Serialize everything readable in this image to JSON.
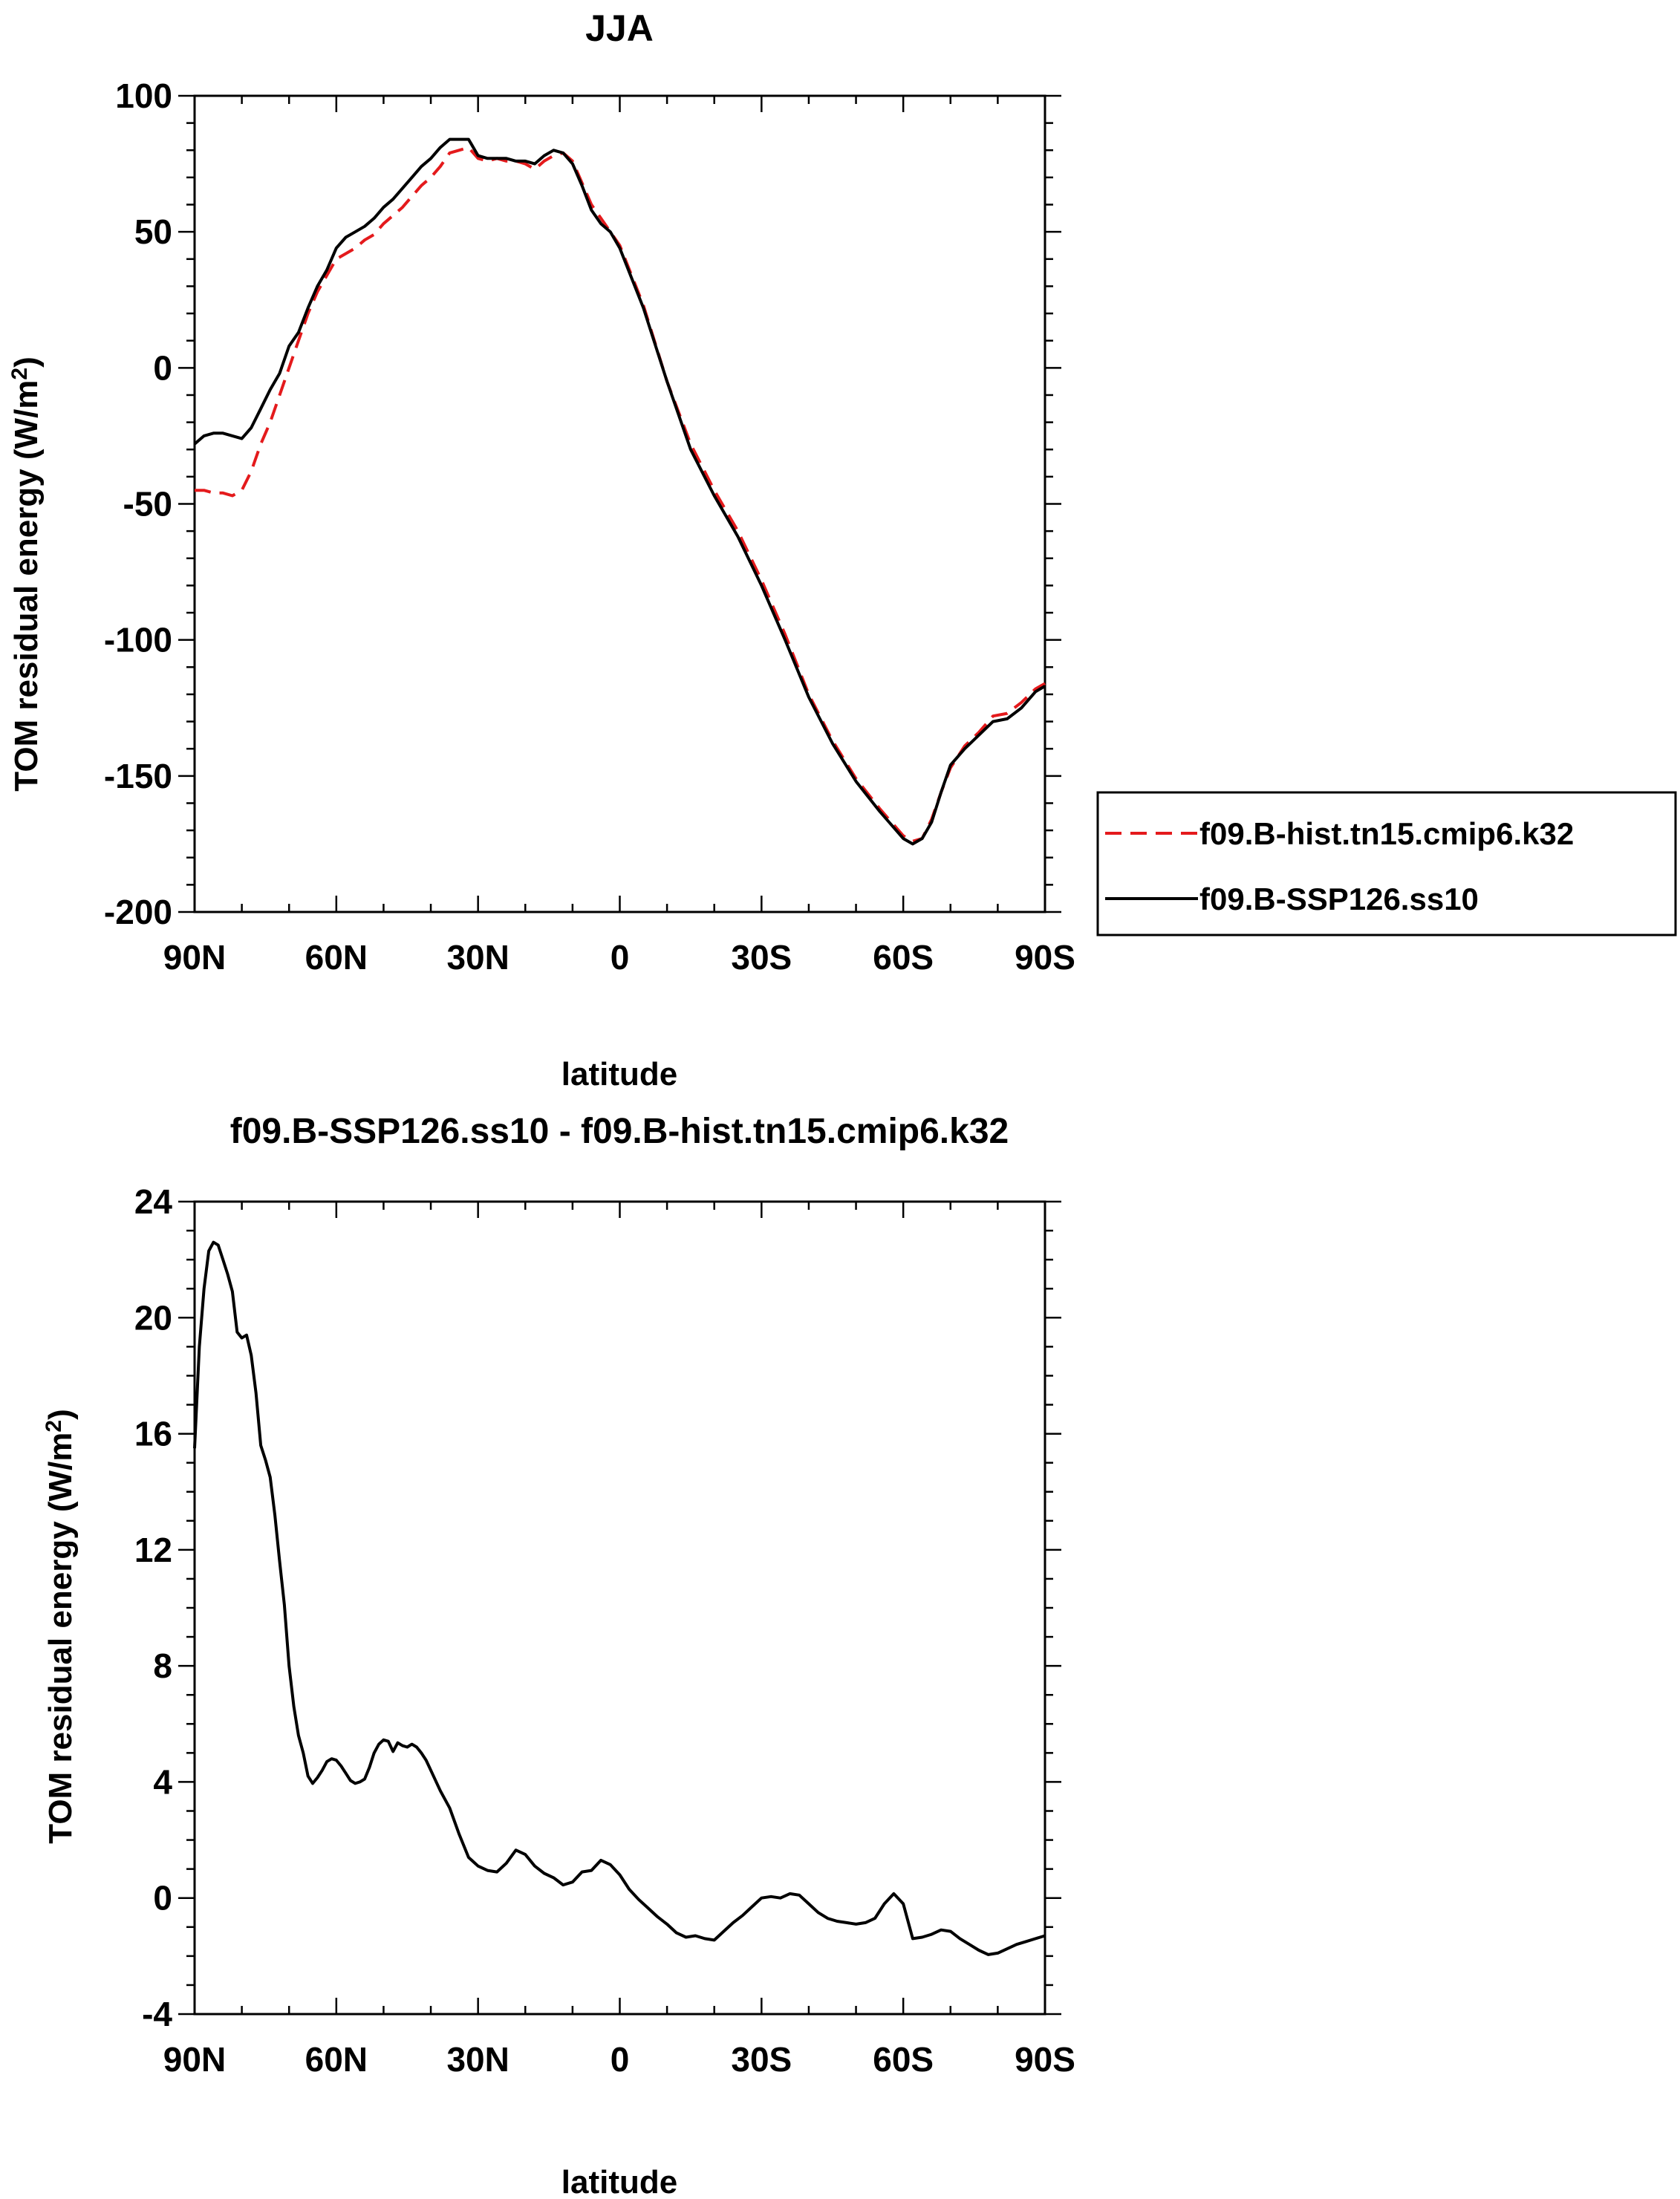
{
  "chart_data": [
    {
      "type": "line",
      "title": "JJA",
      "xlabel": "latitude",
      "ylabel": "TOM residual energy (W/m²)",
      "ylabel_parts": {
        "main": "TOM residual energy (W/m",
        "sup": "2",
        "close": ")"
      },
      "x_direction": "90N to 90S (x = latitude, north positive)",
      "xlim": [
        90,
        -90
      ],
      "ylim": [
        -200,
        100
      ],
      "xticks": [
        90,
        60,
        30,
        0,
        -30,
        -60,
        -90
      ],
      "xtick_labels": [
        "90N",
        "60N",
        "30N",
        "0",
        "30S",
        "60S",
        "90S"
      ],
      "yticks": [
        -200,
        -150,
        -100,
        -50,
        0,
        50,
        100
      ],
      "ytick_labels": [
        "-200",
        "-150",
        "-100",
        "-50",
        "0",
        "50",
        "100"
      ],
      "legend_position": "right, outside plot",
      "series": [
        {
          "name": "f09.B-hist.tn15.cmip6.k32",
          "color": "#e41a1c",
          "dash": "dashed",
          "x": [
            90,
            88,
            86,
            84,
            82,
            80,
            78,
            76,
            74,
            72,
            70,
            68,
            66,
            64,
            62,
            60,
            58,
            56,
            54,
            52,
            50,
            48,
            46,
            44,
            42,
            40,
            38,
            36,
            34,
            32,
            30,
            28,
            26,
            24,
            22,
            20,
            18,
            16,
            14,
            12,
            10,
            8,
            6,
            4,
            2,
            0,
            -5,
            -10,
            -15,
            -20,
            -25,
            -30,
            -35,
            -40,
            -45,
            -50,
            -55,
            -60,
            -62,
            -64,
            -66,
            -68,
            -70,
            -73,
            -76,
            -79,
            -82,
            -85,
            -88,
            -90
          ],
          "values": [
            -45,
            -45,
            -46,
            -46,
            -47,
            -45,
            -38,
            -28,
            -20,
            -10,
            0,
            10,
            20,
            28,
            34,
            40,
            42,
            44,
            47,
            49,
            53,
            56,
            59,
            63,
            67,
            70,
            74,
            79,
            80,
            81,
            77,
            76,
            77,
            76,
            76,
            75,
            73,
            76,
            78,
            79,
            76,
            68,
            60,
            55,
            50,
            45,
            23,
            -5,
            -28,
            -45,
            -60,
            -78,
            -98,
            -120,
            -137,
            -151,
            -162,
            -172,
            -174,
            -173,
            -166,
            -156,
            -147,
            -139,
            -134,
            -128,
            -127,
            -123,
            -118,
            -116
          ]
        },
        {
          "name": "f09.B-SSP126.ss10",
          "color": "#000000",
          "dash": "solid",
          "x": [
            90,
            88,
            86,
            84,
            82,
            80,
            78,
            76,
            74,
            72,
            70,
            68,
            66,
            64,
            62,
            60,
            58,
            56,
            54,
            52,
            50,
            48,
            46,
            44,
            42,
            40,
            38,
            36,
            34,
            32,
            30,
            28,
            26,
            24,
            22,
            20,
            18,
            16,
            14,
            12,
            10,
            8,
            6,
            4,
            2,
            0,
            -5,
            -10,
            -15,
            -20,
            -25,
            -30,
            -35,
            -40,
            -45,
            -50,
            -55,
            -60,
            -62,
            -64,
            -66,
            -68,
            -70,
            -73,
            -76,
            -79,
            -82,
            -85,
            -88,
            -90
          ],
          "values": [
            -28,
            -25,
            -24,
            -24,
            -25,
            -26,
            -22,
            -15,
            -8,
            -2,
            8,
            13,
            22,
            30,
            36,
            44,
            48,
            50,
            52,
            55,
            59,
            62,
            66,
            70,
            74,
            77,
            81,
            84,
            84,
            84,
            78,
            77,
            77,
            77,
            76,
            76,
            75,
            78,
            80,
            79,
            75,
            67,
            58,
            53,
            50,
            44,
            22,
            -5,
            -30,
            -47,
            -62,
            -80,
            -100,
            -121,
            -138,
            -152,
            -163,
            -173,
            -175,
            -173,
            -167,
            -156,
            -146,
            -140,
            -135,
            -130,
            -129,
            -125,
            -119,
            -117
          ]
        }
      ]
    },
    {
      "type": "line",
      "title": "f09.B-SSP126.ss10 - f09.B-hist.tn15.cmip6.k32",
      "xlabel": "latitude",
      "ylabel": "TOM residual energy (W/m²)",
      "ylabel_parts": {
        "main": "TOM residual energy (W/m",
        "sup": "2",
        "close": ")"
      },
      "xlim": [
        90,
        -90
      ],
      "ylim": [
        -4,
        24
      ],
      "xticks": [
        90,
        60,
        30,
        0,
        -30,
        -60,
        -90
      ],
      "xtick_labels": [
        "90N",
        "60N",
        "30N",
        "0",
        "30S",
        "60S",
        "90S"
      ],
      "yticks": [
        -4,
        0,
        4,
        8,
        12,
        16,
        20,
        24
      ],
      "ytick_labels": [
        "-4",
        "0",
        "4",
        "8",
        "12",
        "16",
        "20",
        "24"
      ],
      "series": [
        {
          "name": "f09.B-SSP126.ss10 - f09.B-hist.tn15.cmip6.k32",
          "color": "#000000",
          "dash": "solid",
          "x": [
            90,
            89,
            88,
            87,
            86,
            85,
            84,
            83,
            82,
            81,
            80,
            79,
            78,
            77,
            76,
            75,
            74,
            73,
            72,
            71,
            70,
            69,
            68,
            67,
            66,
            65,
            64,
            63,
            62,
            61,
            60,
            59,
            58,
            57,
            56,
            55,
            54,
            53,
            52,
            51,
            50,
            49,
            48,
            47,
            46,
            45,
            44,
            43,
            42,
            41,
            40,
            38,
            36,
            34,
            32,
            30,
            28,
            26,
            24,
            22,
            20,
            18,
            16,
            14,
            12,
            10,
            8,
            6,
            4,
            2,
            0,
            -2,
            -4,
            -6,
            -8,
            -10,
            -12,
            -14,
            -16,
            -18,
            -20,
            -22,
            -24,
            -26,
            -28,
            -30,
            -32,
            -34,
            -36,
            -38,
            -40,
            -42,
            -44,
            -46,
            -48,
            -50,
            -52,
            -54,
            -56,
            -58,
            -60,
            -62,
            -64,
            -66,
            -68,
            -70,
            -72,
            -74,
            -76,
            -78,
            -80,
            -82,
            -84,
            -86,
            -88,
            -90
          ],
          "values": [
            15.5,
            19,
            21,
            22.3,
            22.6,
            22.5,
            22,
            21.5,
            20.9,
            19.5,
            19.3,
            19.4,
            18.7,
            17.4,
            15.6,
            15.1,
            14.5,
            13.2,
            11.6,
            10.1,
            8.0,
            6.6,
            5.6,
            5.0,
            4.2,
            3.95,
            4.15,
            4.4,
            4.7,
            4.8,
            4.75,
            4.55,
            4.3,
            4.05,
            3.95,
            4.0,
            4.1,
            4.5,
            5.0,
            5.3,
            5.45,
            5.4,
            5.05,
            5.35,
            5.25,
            5.2,
            5.3,
            5.2,
            5.0,
            4.75,
            4.4,
            3.7,
            3.1,
            2.2,
            1.4,
            1.1,
            0.95,
            0.9,
            1.2,
            1.65,
            1.5,
            1.1,
            0.85,
            0.7,
            0.45,
            0.55,
            0.9,
            0.95,
            1.3,
            1.15,
            0.8,
            0.3,
            -0.05,
            -0.35,
            -0.65,
            -0.9,
            -1.2,
            -1.35,
            -1.3,
            -1.4,
            -1.45,
            -1.15,
            -0.85,
            -0.6,
            -0.3,
            0.0,
            0.05,
            0.0,
            0.15,
            0.1,
            -0.2,
            -0.5,
            -0.7,
            -0.8,
            -0.85,
            -0.9,
            -0.85,
            -0.7,
            -0.2,
            0.15,
            -0.2,
            -1.4,
            -1.35,
            -1.25,
            -1.1,
            -1.15,
            -1.4,
            -1.6,
            -1.8,
            -1.95,
            -1.9,
            -1.75,
            -1.6,
            -1.5,
            -1.4,
            -1.3
          ]
        }
      ]
    }
  ]
}
